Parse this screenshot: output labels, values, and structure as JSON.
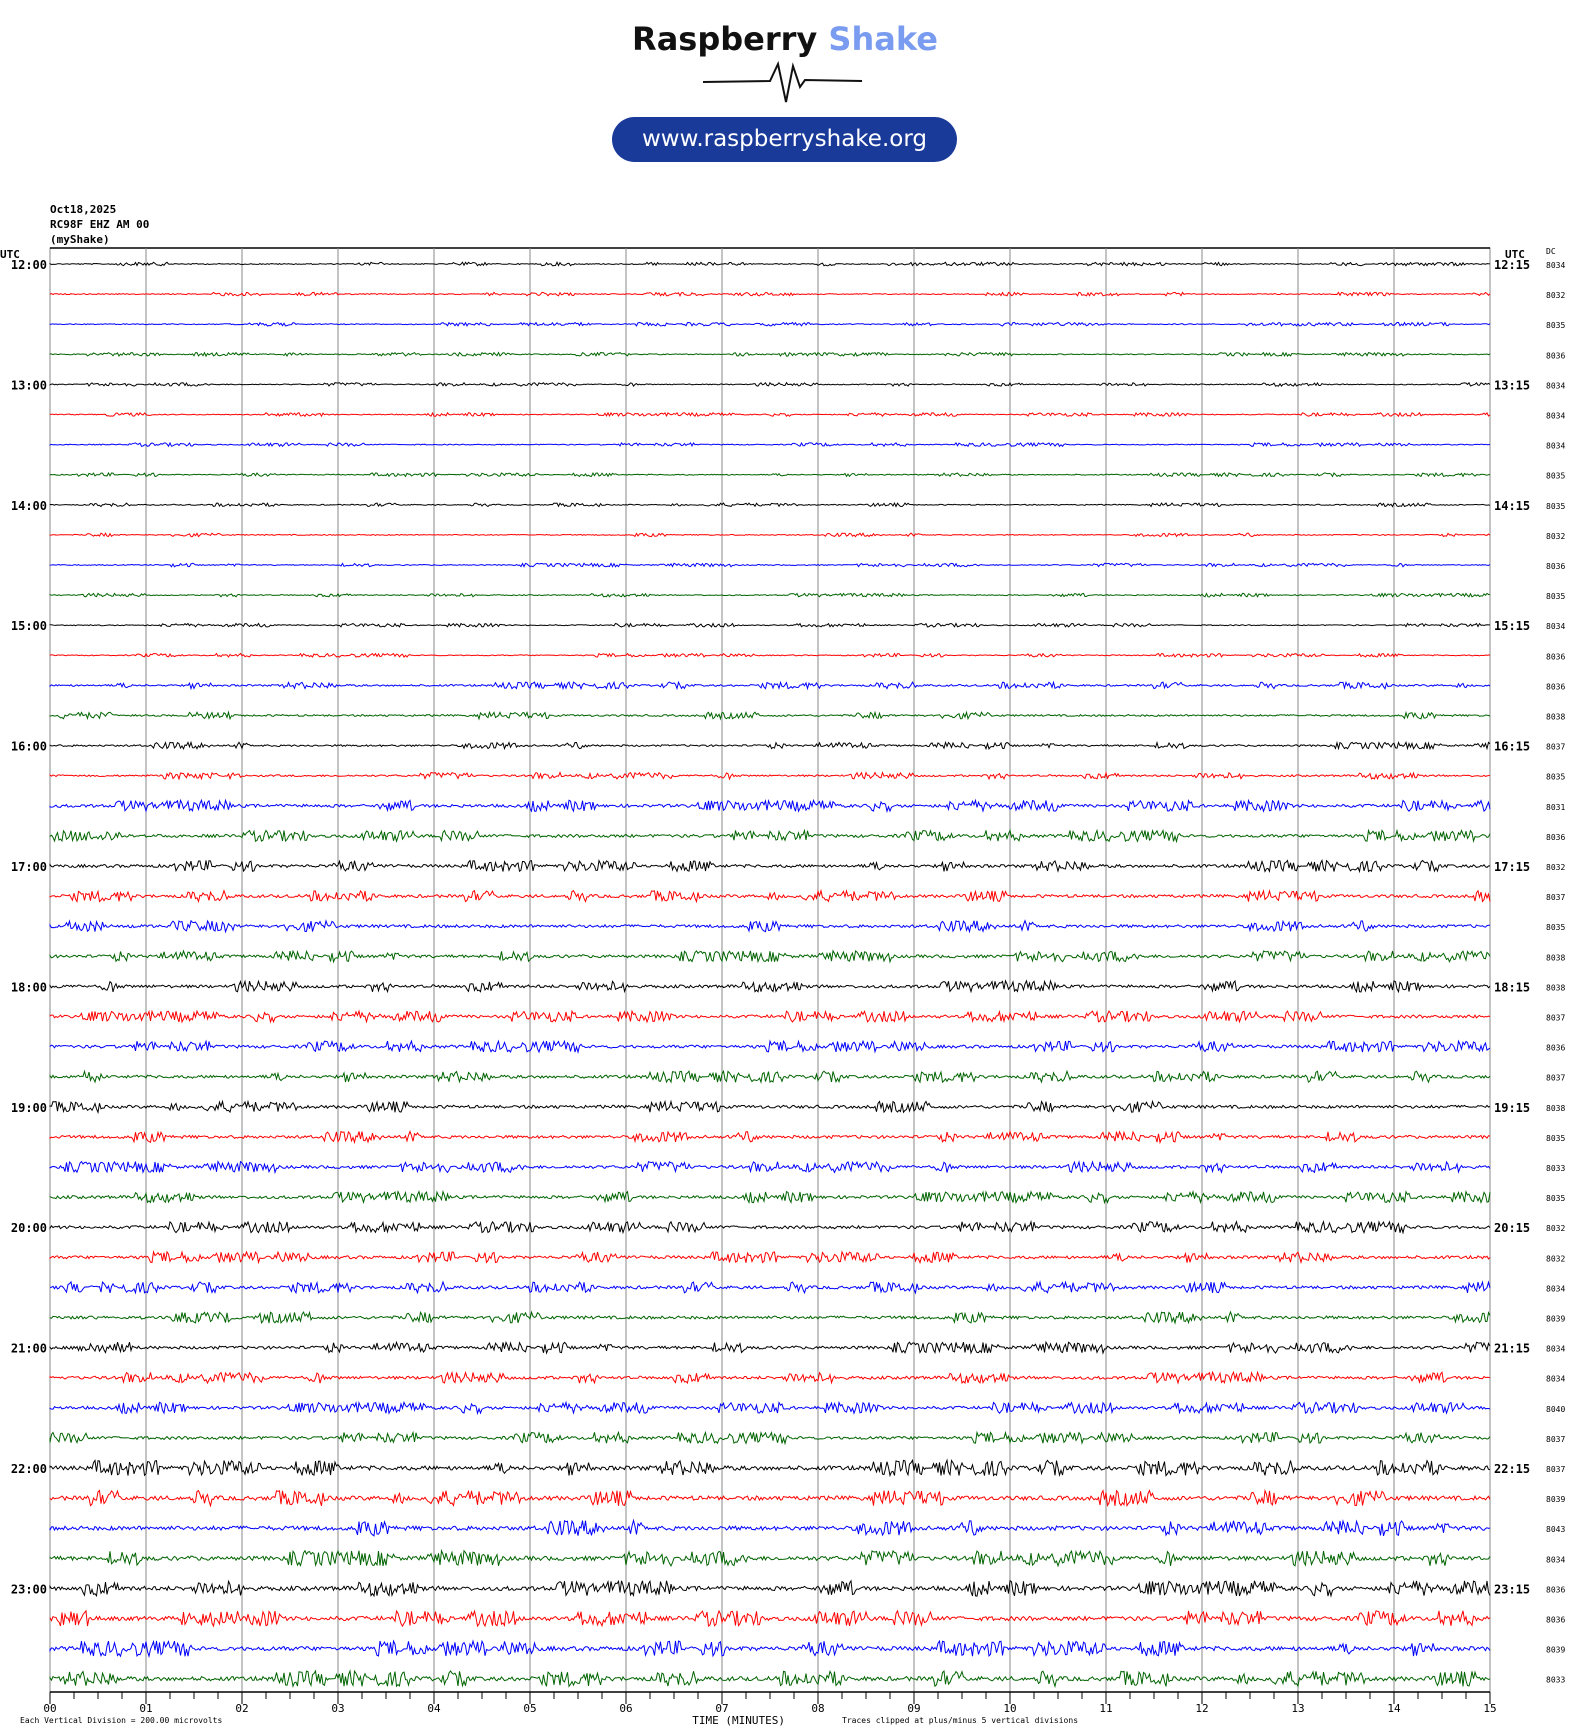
{
  "logo": {
    "word1": "Raspberry",
    "word2": "Shake",
    "url": "www.raspberryshake.org"
  },
  "header": {
    "date": "Oct18,2025",
    "station": "RC98F EHZ AM 00",
    "network": "(myShake)"
  },
  "chart_data": {
    "type": "line",
    "title": "",
    "left_axis_label": "UTC",
    "right_axis_label": "UTC",
    "dc_label": "DC",
    "xlabel": "TIME (MINUTES)",
    "x_ticks": [
      "00",
      "01",
      "02",
      "03",
      "04",
      "05",
      "06",
      "07",
      "08",
      "09",
      "10",
      "11",
      "12",
      "13",
      "14",
      "15"
    ],
    "xlim": [
      0,
      15
    ],
    "left_hour_labels": [
      "12:00",
      "13:00",
      "14:00",
      "15:00",
      "16:00",
      "17:00",
      "18:00",
      "19:00",
      "20:00",
      "21:00",
      "22:00",
      "23:00"
    ],
    "right_hour_labels": [
      "12:15",
      "13:15",
      "14:15",
      "15:15",
      "16:15",
      "17:15",
      "18:15",
      "19:15",
      "20:15",
      "21:15",
      "22:15",
      "23:15"
    ],
    "trace_colors": [
      "#000000",
      "#ff0000",
      "#0000ff",
      "#006400"
    ],
    "dc_values": [
      "8034",
      "8032",
      "8035",
      "8036",
      "8034",
      "8034",
      "8034",
      "8035",
      "8035",
      "8032",
      "8036",
      "8035",
      "8034",
      "8036",
      "8036",
      "8038",
      "8037",
      "8035",
      "8031",
      "8036",
      "8032",
      "8037",
      "8035",
      "8038",
      "8038",
      "8037",
      "8036",
      "8037",
      "8038",
      "8035",
      "8033",
      "8035",
      "8032",
      "8032",
      "8034",
      "8039",
      "8034",
      "8034",
      "8040",
      "8037",
      "8037",
      "8039",
      "8043",
      "8034",
      "8036",
      "8036",
      "8039",
      "8033"
    ],
    "scale_note": "Each Vertical Division =  200.00 microvolts",
    "clip_note": "Traces clipped at plus/minus 5 vertical divisions",
    "grid": true
  }
}
